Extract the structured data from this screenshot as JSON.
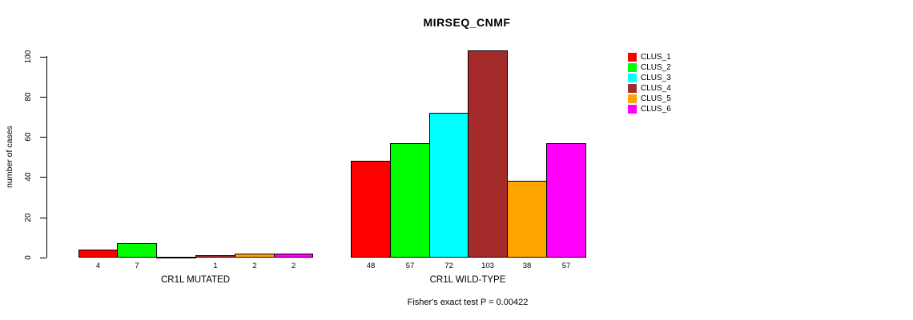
{
  "title": "MIRSEQ_CNMF",
  "chart_data": {
    "type": "bar",
    "title": "MIRSEQ_CNMF",
    "xlabel": "",
    "ylabel": "number of cases",
    "ylim": [
      0,
      100
    ],
    "yticks": [
      0,
      20,
      40,
      60,
      80,
      100
    ],
    "grid": false,
    "legend_position": "right-outside",
    "groups": [
      {
        "label": "CR1L MUTATED",
        "values": [
          4,
          7,
          0,
          1,
          2,
          2
        ],
        "bar_labels": [
          "4",
          "7",
          "",
          "1",
          "2",
          "2"
        ]
      },
      {
        "label": "CR1L WILD-TYPE",
        "values": [
          48,
          57,
          72,
          103,
          38,
          57
        ],
        "bar_labels": [
          "48",
          "57",
          "72",
          "103",
          "38",
          "57"
        ]
      }
    ],
    "series": [
      {
        "name": "CLUS_1",
        "color": "#FF0000",
        "values": [
          4,
          48
        ]
      },
      {
        "name": "CLUS_2",
        "color": "#00FF00",
        "values": [
          7,
          57
        ]
      },
      {
        "name": "CLUS_3",
        "color": "#00FFFF",
        "values": [
          0,
          72
        ]
      },
      {
        "name": "CLUS_4",
        "color": "#A52A2A",
        "values": [
          1,
          103
        ]
      },
      {
        "name": "CLUS_5",
        "color": "#FFA500",
        "values": [
          2,
          38
        ]
      },
      {
        "name": "CLUS_6",
        "color": "#FF00FF",
        "values": [
          2,
          57
        ]
      }
    ],
    "annotation": "Fisher's exact test P = 0.00422"
  },
  "colors": {
    "axis": "#000000",
    "text": "#000000",
    "background": "#FFFFFF"
  }
}
